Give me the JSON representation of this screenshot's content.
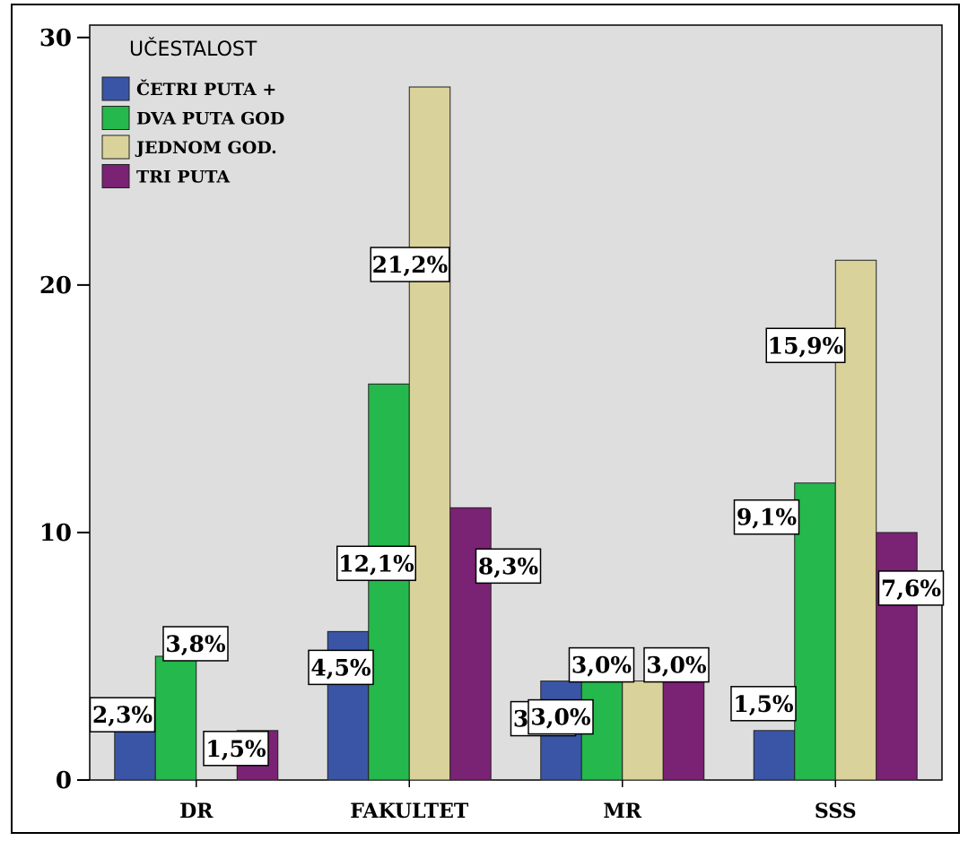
{
  "chart_data": {
    "type": "bar",
    "categories": [
      "DR",
      "FAKULTET",
      "MR",
      "SSS"
    ],
    "legend_title": "UČESTALOST",
    "legend_position": "top-left",
    "series": [
      {
        "name": "ČETRI PUTA +",
        "color": "#3a55a6",
        "values": [
          3,
          6,
          4,
          2
        ],
        "labels": [
          "2,3%",
          "4,5%",
          "3,0%",
          "1,5%"
        ]
      },
      {
        "name": "DVA PUTA GOD",
        "color": "#25b84c",
        "values": [
          5,
          16,
          4,
          12
        ],
        "labels": [
          "3,8%",
          "12,1%",
          "3,0%",
          "9,1%"
        ]
      },
      {
        "name": "JEDNOM GOD.",
        "color": "#d9d29a",
        "values": [
          0,
          28,
          4,
          21
        ],
        "labels": [
          "",
          "21,2%",
          "3,0%",
          "15,9%"
        ]
      },
      {
        "name": "TRI PUTA",
        "color": "#7a2274",
        "values": [
          2,
          11,
          4,
          10
        ],
        "labels": [
          "1,5%",
          "8,3%",
          "3,0%",
          "7,6%"
        ]
      }
    ],
    "yticks": [
      0,
      10,
      20,
      30
    ],
    "ylim": [
      0,
      30.5
    ],
    "grid": false,
    "plot_background": "#dedede"
  }
}
